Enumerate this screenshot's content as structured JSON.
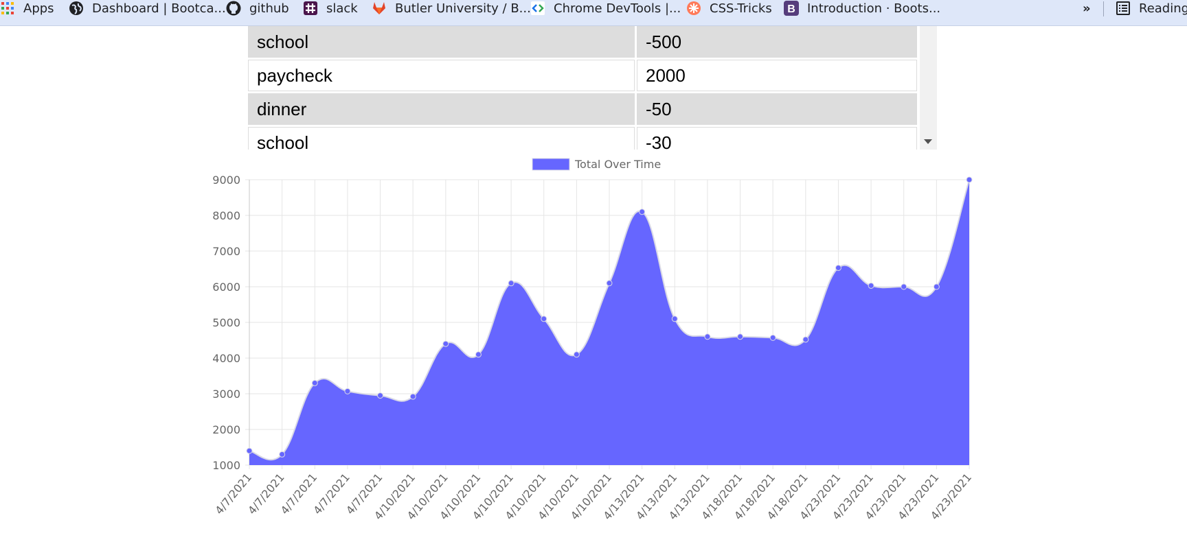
{
  "bookmarks": [
    {
      "label": "Apps",
      "icon": "apps-grid-icon"
    },
    {
      "label": "Dashboard | Bootca...",
      "icon": "globe-icon"
    },
    {
      "label": "github",
      "icon": "github-icon"
    },
    {
      "label": "slack",
      "icon": "slack-icon"
    },
    {
      "label": "Butler University / B...",
      "icon": "gitlab-icon"
    },
    {
      "label": "Chrome DevTools  |...",
      "icon": "devtools-icon"
    },
    {
      "label": "CSS-Tricks",
      "icon": "css-tricks-icon"
    },
    {
      "label": "Introduction · Boots...",
      "icon": "bootstrap-icon"
    }
  ],
  "overflow_label": "»",
  "reading_list_label": "Reading",
  "transactions": [
    {
      "name": "school",
      "amount": "-500"
    },
    {
      "name": "paycheck",
      "amount": "2000"
    },
    {
      "name": "dinner",
      "amount": "-50"
    },
    {
      "name": "school",
      "amount": "-30"
    }
  ],
  "colors": {
    "fill": "#6666ff",
    "stroke": "#d9d9e6",
    "grid": "#e5e5e5",
    "bookmark_bar": "#dee7f9"
  },
  "chart_data": {
    "type": "area",
    "legend": [
      "Total Over Time"
    ],
    "legend_position": "top",
    "categories": [
      "4/7/2021",
      "4/7/2021",
      "4/7/2021",
      "4/7/2021",
      "4/7/2021",
      "4/10/2021",
      "4/10/2021",
      "4/10/2021",
      "4/10/2021",
      "4/10/2021",
      "4/10/2021",
      "4/10/2021",
      "4/13/2021",
      "4/13/2021",
      "4/13/2021",
      "4/18/2021",
      "4/18/2021",
      "4/18/2021",
      "4/23/2021",
      "4/23/2021",
      "4/23/2021",
      "4/23/2021",
      "4/23/2021"
    ],
    "series": [
      {
        "name": "Total Over Time",
        "values": [
          1400,
          1300,
          3300,
          3070,
          2950,
          2920,
          4400,
          4100,
          6100,
          5100,
          4100,
          6100,
          8100,
          5100,
          4600,
          4600,
          4570,
          4520,
          6530,
          6030,
          6000,
          6000,
          9000
        ]
      }
    ],
    "ylim": [
      1000,
      9000
    ],
    "yticks": [
      1000,
      2000,
      3000,
      4000,
      5000,
      6000,
      7000,
      8000,
      9000
    ],
    "grid": true
  }
}
